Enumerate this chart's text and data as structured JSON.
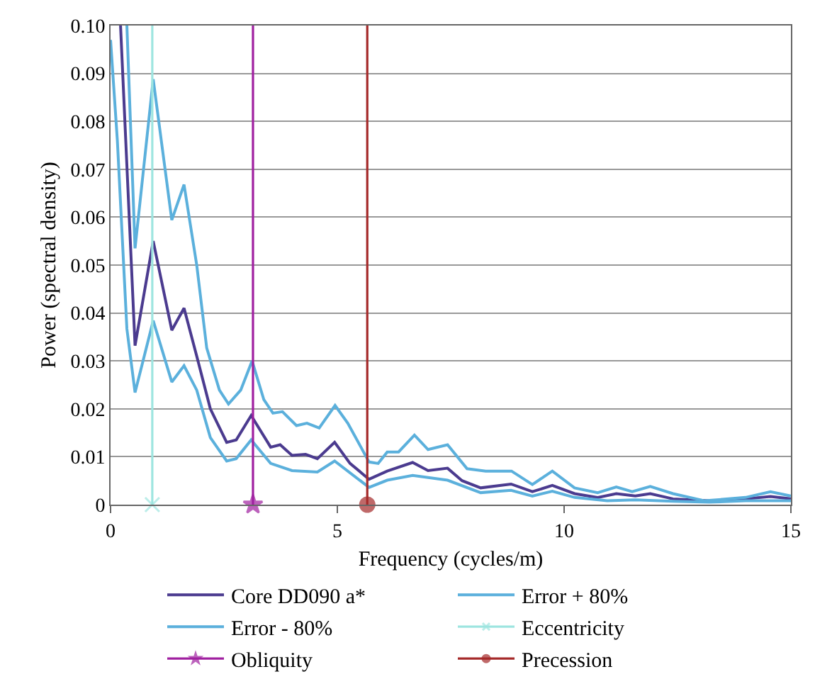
{
  "chart_data": {
    "type": "line",
    "xlabel": "Frequency (cycles/m)",
    "ylabel": "Power (spectral density)",
    "xlim": [
      0,
      15
    ],
    "xticks": [
      0,
      5,
      10,
      15
    ],
    "ylim": [
      0,
      0.1
    ],
    "yticks": [
      {
        "value": 0,
        "label": "0"
      },
      0.01,
      0.02,
      0.03,
      0.04,
      0.05,
      0.06,
      0.07,
      0.08,
      0.09,
      {
        "value": 0.1,
        "label": "0.10"
      }
    ],
    "grid": "y",
    "legend": "bottom",
    "marker": "none",
    "line_style": "solid",
    "series": [
      {
        "name": "Core DD090 a*",
        "color": "#4b3b8f",
        "x": [
          0.22,
          0.54,
          0.94,
          1.35,
          1.62,
          1.9,
          2.2,
          2.56,
          2.77,
          3.1,
          3.53,
          3.74,
          4.0,
          4.3,
          4.56,
          4.94,
          5.28,
          5.7,
          6.1,
          6.66,
          7.0,
          7.43,
          7.75,
          8.16,
          8.83,
          9.3,
          9.74,
          10.23,
          10.74,
          11.15,
          11.57,
          11.9,
          12.4,
          13.2,
          14.0,
          14.55,
          15
        ],
        "values": [
          0.1,
          0.0332,
          0.055,
          0.0364,
          0.041,
          0.031,
          0.02,
          0.013,
          0.0135,
          0.0186,
          0.012,
          0.0125,
          0.0103,
          0.0105,
          0.0096,
          0.013,
          0.0086,
          0.0053,
          0.007,
          0.0088,
          0.0071,
          0.0076,
          0.005,
          0.0035,
          0.0043,
          0.0027,
          0.004,
          0.0023,
          0.0015,
          0.0023,
          0.0018,
          0.0023,
          0.0012,
          0.0008,
          0.0012,
          0.0017,
          0.0012
        ]
      },
      {
        "name": "Error + 80%",
        "color": "#5bb0dc",
        "x": [
          0.36,
          0.54,
          0.94,
          1.35,
          1.62,
          1.9,
          2.12,
          2.4,
          2.6,
          2.87,
          3.12,
          3.38,
          3.58,
          3.79,
          4.1,
          4.33,
          4.6,
          4.95,
          5.23,
          5.7,
          5.9,
          6.1,
          6.35,
          6.7,
          7.0,
          7.43,
          7.86,
          8.27,
          8.84,
          9.3,
          9.74,
          10.23,
          10.74,
          11.15,
          11.5,
          11.9,
          12.4,
          13.1,
          14.0,
          14.55,
          15
        ],
        "values": [
          0.1,
          0.0535,
          0.0888,
          0.0594,
          0.0668,
          0.05,
          0.0327,
          0.0239,
          0.021,
          0.0239,
          0.03,
          0.0219,
          0.0191,
          0.0194,
          0.0165,
          0.017,
          0.016,
          0.0207,
          0.017,
          0.0089,
          0.0086,
          0.011,
          0.011,
          0.0145,
          0.0115,
          0.0125,
          0.0075,
          0.007,
          0.007,
          0.0042,
          0.007,
          0.0035,
          0.0025,
          0.0037,
          0.0027,
          0.0038,
          0.0023,
          0.0008,
          0.0015,
          0.0027,
          0.0018
        ]
      },
      {
        "name": "Error - 80%",
        "color": "#5bb0dc",
        "x": [
          0,
          0.15,
          0.36,
          0.54,
          0.94,
          1.35,
          1.62,
          1.9,
          2.2,
          2.56,
          2.77,
          3.1,
          3.53,
          4.0,
          4.56,
          4.94,
          5.7,
          6.1,
          6.66,
          7.43,
          8.16,
          8.83,
          9.3,
          9.74,
          10.23,
          10.95,
          11.57,
          12.4,
          13.2,
          14.0,
          15
        ],
        "values": [
          0.097,
          0.076,
          0.0367,
          0.0234,
          0.0384,
          0.0256,
          0.029,
          0.0239,
          0.014,
          0.0091,
          0.0096,
          0.0135,
          0.0086,
          0.0071,
          0.0068,
          0.0091,
          0.0036,
          0.0051,
          0.0061,
          0.0051,
          0.0025,
          0.003,
          0.0018,
          0.0028,
          0.0015,
          0.0008,
          0.001,
          0.0007,
          0.0005,
          0.0008,
          0.0008
        ]
      },
      {
        "name": "Eccentricity",
        "color": "#9ee5e0",
        "marker": "cross",
        "x": [
          0.92,
          0.92
        ],
        "values": [
          0,
          0.1
        ]
      },
      {
        "name": "Obliquity",
        "color": "#a020a0",
        "marker": "star",
        "x": [
          3.14,
          3.14
        ],
        "values": [
          0,
          0.1
        ]
      },
      {
        "name": "Precession",
        "color": "#a52a2a",
        "marker": "circle",
        "x": [
          5.66,
          5.66
        ],
        "values": [
          0,
          0.1
        ]
      }
    ]
  }
}
